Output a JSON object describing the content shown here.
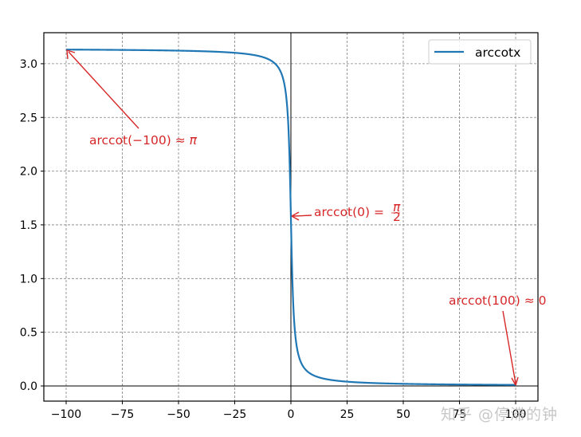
{
  "chart_data": {
    "type": "line",
    "title": "",
    "xlabel": "",
    "ylabel": "",
    "xlim": [
      -110,
      110
    ],
    "ylim": [
      -0.14,
      3.29
    ],
    "grid": true,
    "legend_position": "upper right",
    "x_ticks": [
      -100,
      -75,
      -50,
      -25,
      0,
      25,
      50,
      75,
      100
    ],
    "x_tick_labels": [
      "−100",
      "−75",
      "−50",
      "−25",
      "0",
      "25",
      "50",
      "75",
      "100"
    ],
    "y_ticks": [
      0.0,
      0.5,
      1.0,
      1.5,
      2.0,
      2.5,
      3.0
    ],
    "y_tick_labels": [
      "0.0",
      "0.5",
      "1.0",
      "1.5",
      "2.0",
      "2.5",
      "3.0"
    ],
    "series": [
      {
        "name": "arccotx",
        "color": "#1f77b4",
        "function": "arccot(x) = pi/2 - arctan(x)",
        "x": [
          -100,
          -75,
          -50,
          -25,
          -10,
          -5,
          -2,
          -1,
          0,
          1,
          2,
          5,
          10,
          25,
          50,
          75,
          100
        ],
        "values": [
          3.1316,
          3.1283,
          3.1216,
          3.1016,
          3.042,
          2.9442,
          2.6779,
          2.3562,
          1.5708,
          0.7854,
          0.4636,
          0.1974,
          0.0997,
          0.04,
          0.02,
          0.0133,
          0.01
        ]
      }
    ],
    "reference_lines": [
      {
        "orientation": "vertical",
        "x": 0,
        "color": "#000000"
      },
      {
        "orientation": "horizontal",
        "y": 0,
        "color": "#000000"
      }
    ],
    "annotations": [
      {
        "text": "arccot(−100) ≈ π",
        "xy": [
          -100,
          3.1316
        ],
        "text_pos": [
          -90,
          2.25
        ],
        "color": "#d62728"
      },
      {
        "text": "arccot(0) = π/2",
        "xy": [
          0,
          1.5708
        ],
        "text_pos": [
          10,
          1.6
        ],
        "color": "#d62728"
      },
      {
        "text": "arccot(100) ≈ 0",
        "xy": [
          100,
          0.01
        ],
        "text_pos": [
          70,
          0.75
        ],
        "color": "#d62728"
      }
    ]
  },
  "legend": {
    "label": "arccotx"
  },
  "annotations_text": {
    "a1_main": "arccot(−100) ≈ ",
    "a1_sym": "π",
    "a2_main": "arccot(0) = ",
    "a2_num": "π",
    "a2_den": "2",
    "a3": "arccot(100) ≈ 0"
  },
  "watermark": "知乎 @停滞的钟"
}
